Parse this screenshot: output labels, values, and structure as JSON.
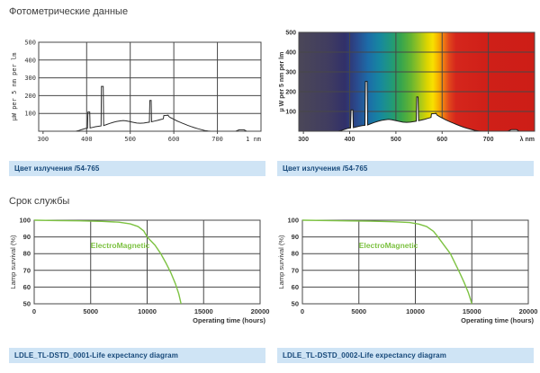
{
  "page": {
    "photometric_heading": "Фотометрические данные",
    "lifetime_heading": "Срок службы"
  },
  "captions": {
    "spectral_left": "Цвет излучения /54-765",
    "spectral_right": "Цвет излучения /54-765",
    "life_left": "LDLE_TL-DSTD_0001-Life expectancy diagram",
    "life_right": "LDLE_TL-DSTD_0002-Life expectancy diagram"
  },
  "colors": {
    "caption_bg": "#cfe4f5",
    "caption_text": "#17497a",
    "curve_green": "#7dc242",
    "spectral_line": "#2b2b2b",
    "grid": "#474747",
    "tick_text": "#333333"
  },
  "chart_data": [
    {
      "id": "spd-plain",
      "type": "line",
      "style": "plain",
      "title": "Spectral power distribution",
      "xlabel": "1 nm",
      "ylabel": "µW per 5 nm per lm",
      "xlim": [
        290,
        800
      ],
      "ylim": [
        0,
        500
      ],
      "xticks": [
        300,
        400,
        500,
        600,
        700
      ],
      "yticks": [
        100,
        200,
        300,
        400,
        500
      ],
      "grid": true,
      "series": [
        {
          "name": "spectral power (µW per 5 nm per lm)",
          "points": [
            [
              375,
              0
            ],
            [
              382,
              4
            ],
            [
              390,
              10
            ],
            [
              397,
              15
            ],
            [
              402,
              17
            ],
            [
              403,
              108
            ],
            [
              407,
              108
            ],
            [
              408,
              18
            ],
            [
              413,
              21
            ],
            [
              420,
              25
            ],
            [
              427,
              28
            ],
            [
              433,
              30
            ],
            [
              434,
              252
            ],
            [
              438,
              252
            ],
            [
              439,
              32
            ],
            [
              446,
              38
            ],
            [
              453,
              44
            ],
            [
              461,
              50
            ],
            [
              469,
              55
            ],
            [
              477,
              58
            ],
            [
              484,
              60
            ],
            [
              491,
              58
            ],
            [
              499,
              54
            ],
            [
              507,
              50
            ],
            [
              515,
              46
            ],
            [
              523,
              45
            ],
            [
              531,
              46
            ],
            [
              539,
              49
            ],
            [
              544,
              51
            ],
            [
              545,
              173
            ],
            [
              548,
              173
            ],
            [
              549,
              53
            ],
            [
              556,
              57
            ],
            [
              563,
              61
            ],
            [
              569,
              65
            ],
            [
              575,
              69
            ],
            [
              576,
              70
            ],
            [
              577,
              88
            ],
            [
              583,
              89
            ],
            [
              587,
              90
            ],
            [
              589,
              82
            ],
            [
              593,
              76
            ],
            [
              597,
              71
            ],
            [
              601,
              66
            ],
            [
              607,
              58
            ],
            [
              613,
              52
            ],
            [
              619,
              46
            ],
            [
              625,
              40
            ],
            [
              631,
              34
            ],
            [
              639,
              27
            ],
            [
              647,
              20
            ],
            [
              655,
              14
            ],
            [
              663,
              9
            ],
            [
              671,
              4
            ],
            [
              679,
              1
            ],
            [
              685,
              0
            ],
            [
              742,
              0
            ],
            [
              750,
              8
            ],
            [
              761,
              8
            ],
            [
              767,
              0
            ],
            [
              780,
              0
            ]
          ]
        }
      ]
    },
    {
      "id": "spd-color",
      "type": "area",
      "style": "spectrum",
      "title": "Spectral power distribution on colour spectrum",
      "xlabel": "λ nm",
      "ylabel": "µ W per 5 nm per lm",
      "xlim": [
        290,
        800
      ],
      "ylim": [
        0,
        500
      ],
      "xticks": [
        300,
        400,
        500,
        600,
        700
      ],
      "yticks": [
        100,
        200,
        300,
        400,
        500
      ],
      "grid": true,
      "spectrum_stops": [
        [
          290,
          "#4b4758"
        ],
        [
          355,
          "#403c60"
        ],
        [
          390,
          "#313069"
        ],
        [
          415,
          "#2a4a8d"
        ],
        [
          440,
          "#1c6ca8"
        ],
        [
          465,
          "#1687a0"
        ],
        [
          490,
          "#21997a"
        ],
        [
          510,
          "#35a44f"
        ],
        [
          532,
          "#63b433"
        ],
        [
          552,
          "#a4c61c"
        ],
        [
          568,
          "#ddd500"
        ],
        [
          580,
          "#f8e000"
        ],
        [
          592,
          "#f7b100"
        ],
        [
          603,
          "#f07c12"
        ],
        [
          615,
          "#e0461c"
        ],
        [
          630,
          "#d5261c"
        ],
        [
          700,
          "#cf1f18"
        ],
        [
          800,
          "#cd1e17"
        ]
      ],
      "series": [
        {
          "name": "spectral power (µW per 5 nm per lm)",
          "points": [
            [
              375,
              0
            ],
            [
              382,
              4
            ],
            [
              390,
              10
            ],
            [
              397,
              15
            ],
            [
              402,
              17
            ],
            [
              403,
              108
            ],
            [
              407,
              108
            ],
            [
              408,
              18
            ],
            [
              413,
              21
            ],
            [
              420,
              25
            ],
            [
              427,
              28
            ],
            [
              433,
              30
            ],
            [
              434,
              252
            ],
            [
              438,
              252
            ],
            [
              439,
              32
            ],
            [
              446,
              38
            ],
            [
              453,
              44
            ],
            [
              461,
              50
            ],
            [
              469,
              55
            ],
            [
              477,
              58
            ],
            [
              484,
              60
            ],
            [
              491,
              58
            ],
            [
              499,
              54
            ],
            [
              507,
              50
            ],
            [
              515,
              46
            ],
            [
              523,
              45
            ],
            [
              531,
              46
            ],
            [
              539,
              49
            ],
            [
              544,
              51
            ],
            [
              545,
              173
            ],
            [
              548,
              173
            ],
            [
              549,
              53
            ],
            [
              556,
              57
            ],
            [
              563,
              61
            ],
            [
              569,
              65
            ],
            [
              575,
              69
            ],
            [
              576,
              70
            ],
            [
              577,
              88
            ],
            [
              583,
              89
            ],
            [
              587,
              90
            ],
            [
              589,
              82
            ],
            [
              593,
              76
            ],
            [
              597,
              71
            ],
            [
              601,
              66
            ],
            [
              607,
              58
            ],
            [
              613,
              52
            ],
            [
              619,
              46
            ],
            [
              625,
              40
            ],
            [
              631,
              34
            ],
            [
              639,
              27
            ],
            [
              647,
              20
            ],
            [
              655,
              14
            ],
            [
              663,
              9
            ],
            [
              671,
              4
            ],
            [
              679,
              1
            ],
            [
              685,
              0
            ],
            [
              742,
              0
            ],
            [
              750,
              8
            ],
            [
              761,
              8
            ],
            [
              767,
              0
            ],
            [
              780,
              0
            ]
          ]
        }
      ]
    },
    {
      "id": "life-1",
      "type": "line",
      "style": "life",
      "title": "LDLE_TL-DSTD_0001-Life expectancy diagram",
      "xlabel": "Operating time (hours)",
      "ylabel": "Lamp survival  (%)",
      "xlim": [
        0,
        20000
      ],
      "ylim": [
        50,
        100
      ],
      "xticks": [
        0,
        5000,
        10000,
        15000,
        20000
      ],
      "yticks": [
        50,
        60,
        70,
        80,
        90,
        100
      ],
      "grid": true,
      "annotation": {
        "text": "ElectroMagnetic",
        "x": 5000,
        "y": 85
      },
      "series": [
        {
          "name": "ElectroMagnetic",
          "points": [
            [
              0,
              100
            ],
            [
              2000,
              99.8
            ],
            [
              4000,
              99.6
            ],
            [
              6000,
              99.3
            ],
            [
              7500,
              98.8
            ],
            [
              8500,
              97.8
            ],
            [
              9200,
              96.2
            ],
            [
              9700,
              93.6
            ],
            [
              10000,
              90
            ],
            [
              10700,
              85
            ],
            [
              11200,
              80
            ],
            [
              11700,
              74
            ],
            [
              12100,
              68.5
            ],
            [
              12500,
              62
            ],
            [
              12800,
              56
            ],
            [
              13000,
              50
            ]
          ]
        }
      ]
    },
    {
      "id": "life-2",
      "type": "line",
      "style": "life",
      "title": "LDLE_TL-DSTD_0002-Life expectancy diagram",
      "xlabel": "Operating time (hours)",
      "ylabel": "Lamp survival  (%)",
      "xlim": [
        0,
        20000
      ],
      "ylim": [
        50,
        100
      ],
      "xticks": [
        0,
        5000,
        10000,
        15000,
        20000
      ],
      "yticks": [
        50,
        60,
        70,
        80,
        90,
        100
      ],
      "grid": true,
      "annotation": {
        "text": "ElectroMagnetic",
        "x": 5000,
        "y": 85
      },
      "series": [
        {
          "name": "ElectroMagnetic",
          "points": [
            [
              0,
              100
            ],
            [
              3000,
              99.7
            ],
            [
              6000,
              99.4
            ],
            [
              8000,
              99.1
            ],
            [
              9500,
              98.6
            ],
            [
              10300,
              97.7
            ],
            [
              11000,
              96.2
            ],
            [
              11600,
              93.4
            ],
            [
              12000,
              90
            ],
            [
              12600,
              84.5
            ],
            [
              13100,
              80
            ],
            [
              13500,
              74.5
            ],
            [
              13900,
              69
            ],
            [
              14300,
              63
            ],
            [
              14700,
              56.5
            ],
            [
              15000,
              50
            ]
          ]
        }
      ]
    }
  ]
}
